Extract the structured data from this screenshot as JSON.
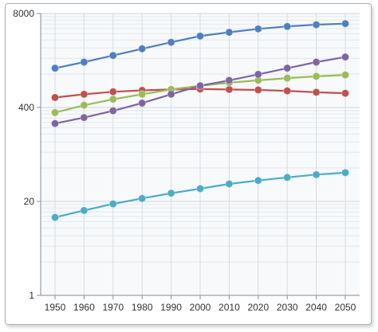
{
  "chart_data": {
    "type": "line",
    "scale": "log",
    "x": [
      1950,
      1960,
      1970,
      1980,
      1990,
      2000,
      2010,
      2020,
      2030,
      2040,
      2050
    ],
    "y_ticks": [
      "1",
      "20",
      "400",
      "8000"
    ],
    "y_tick_values": [
      1,
      20,
      400,
      8000
    ],
    "ylim": [
      1,
      8000
    ],
    "grid": true,
    "series": [
      {
        "color": "#4f7fc0",
        "values": [
          1400,
          1700,
          2100,
          2600,
          3200,
          3900,
          4400,
          4900,
          5300,
          5600,
          5800
        ]
      },
      {
        "color": "#c0504d",
        "values": [
          550,
          610,
          660,
          690,
          710,
          720,
          710,
          700,
          680,
          650,
          630
        ]
      },
      {
        "color": "#9bbb59",
        "values": [
          340,
          430,
          520,
          610,
          710,
          800,
          880,
          950,
          1020,
          1080,
          1130
        ]
      },
      {
        "color": "#8064a2",
        "values": [
          240,
          290,
          360,
          460,
          610,
          800,
          950,
          1150,
          1400,
          1700,
          2000
        ]
      },
      {
        "color": "#4bacc6",
        "values": [
          12,
          15,
          18.5,
          22,
          26,
          30,
          35,
          39,
          43,
          47,
          50
        ]
      }
    ]
  }
}
